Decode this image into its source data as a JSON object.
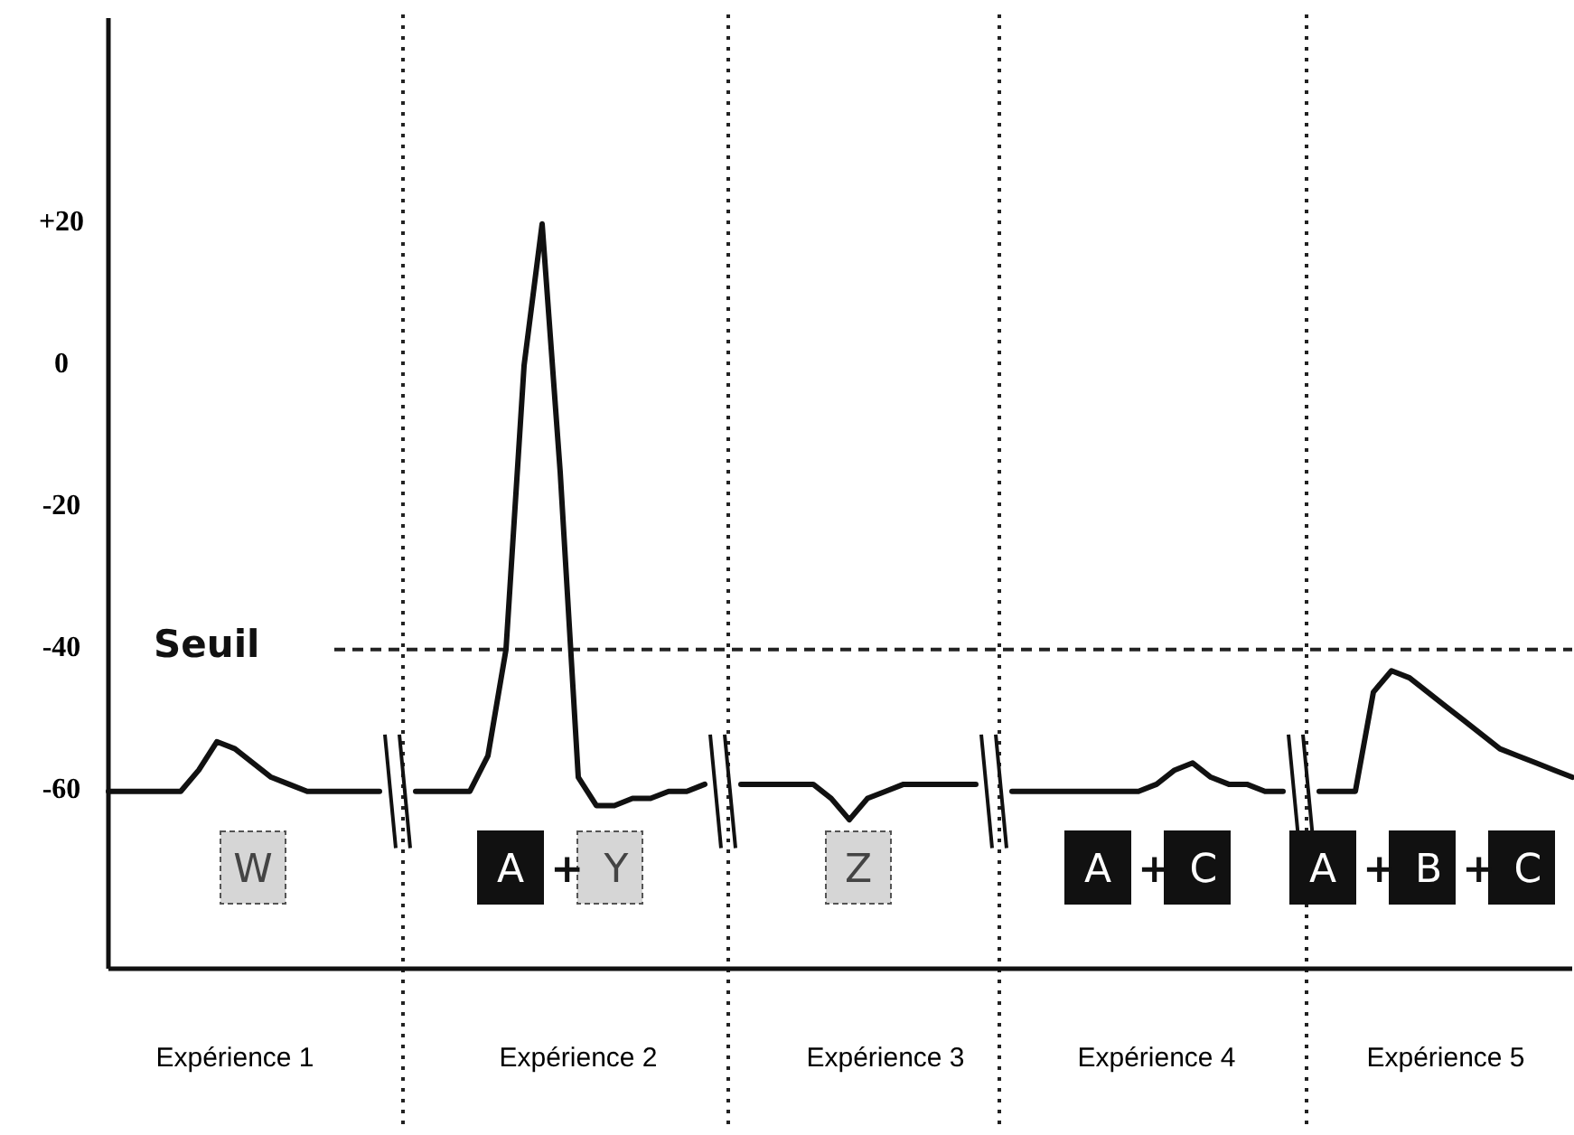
{
  "chart_data": {
    "type": "line",
    "ylim": [
      -85,
      49
    ],
    "categories": [
      null,
      null,
      null,
      null,
      null,
      null,
      null,
      "Expérience 1",
      null,
      null,
      null,
      null,
      null,
      null,
      null,
      null,
      null,
      null,
      null,
      null,
      null,
      null,
      null,
      null,
      null,
      null,
      "Expérience 2",
      null,
      null,
      null,
      null,
      null,
      null,
      null,
      null,
      null,
      null,
      null,
      null,
      null,
      null,
      null,
      null,
      "Expérience 3",
      null,
      null,
      null,
      null,
      null,
      null,
      null,
      null,
      null,
      null,
      null,
      null,
      null,
      null,
      "Expérience 4",
      null,
      null,
      null,
      null,
      null,
      null,
      null,
      null,
      null,
      null,
      null,
      null,
      null,
      null,
      null,
      "Expérience 5",
      null,
      null,
      null,
      null,
      null,
      null,
      null
    ],
    "yticks": [
      {
        "value": 20,
        "label": "+20"
      },
      0,
      -20,
      -40,
      -60
    ],
    "series": [
      {
        "color": "#111111",
        "values": [
          -60,
          -60,
          -60,
          -60,
          -60,
          -57,
          -53,
          -54,
          -56,
          -58,
          -59,
          -60,
          -60,
          -60,
          -60,
          -60,
          null,
          -60,
          -60,
          -60,
          -60,
          -55,
          -40,
          0,
          20,
          -15,
          -58,
          -62,
          -62,
          -61,
          -61,
          -60,
          -60,
          -59,
          null,
          -59,
          -59,
          -59,
          -59,
          -59,
          -61,
          -64,
          -61,
          -60,
          -59,
          -59,
          -59,
          -59,
          -59,
          null,
          -60,
          -60,
          -60,
          -60,
          -60,
          -60,
          -60,
          -60,
          -59,
          -57,
          -56,
          -58,
          -59,
          -59,
          -60,
          -60,
          null,
          -60,
          -60,
          -60,
          -46,
          -43,
          -44,
          -46,
          -48,
          -50,
          -52,
          -54,
          -55,
          -56,
          -57,
          -58
        ]
      }
    ],
    "ref_lines": [
      {
        "axis": "y",
        "value": -40,
        "label": "Seuil",
        "line_style": "dashed"
      }
    ],
    "annotations": [
      "W",
      "A + Y",
      "Z",
      "A + C",
      "A + B + C"
    ],
    "grid": false,
    "marker": "none",
    "line_style": "solid"
  }
}
